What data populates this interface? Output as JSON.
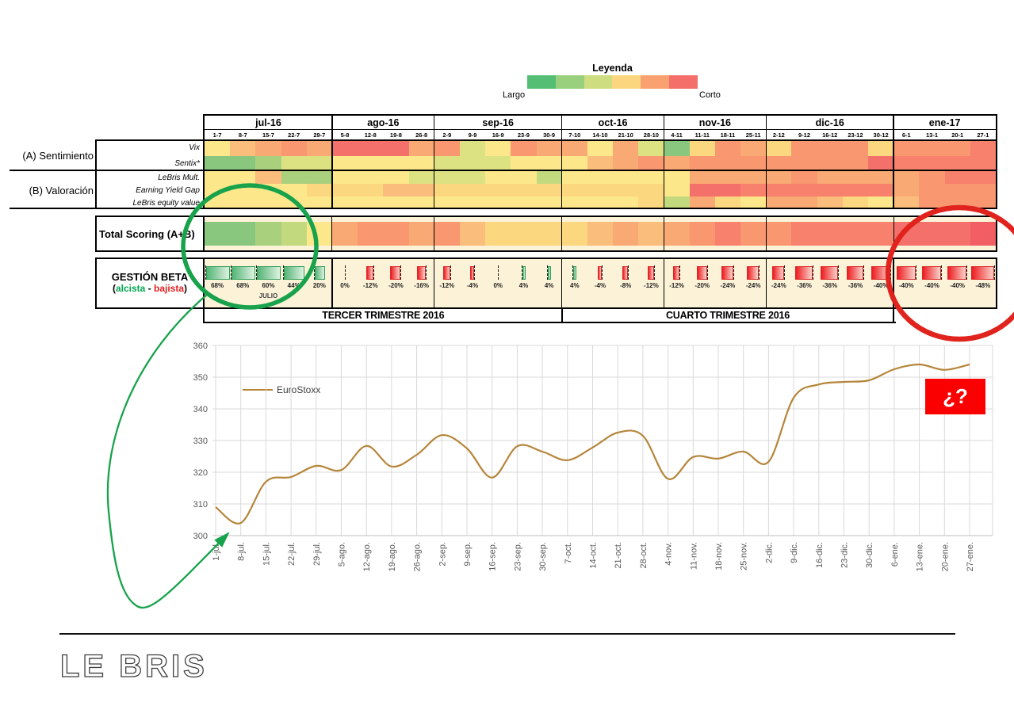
{
  "legend": {
    "title": "Leyenda",
    "left_label": "Largo",
    "right_label": "Corto",
    "colors": [
      "#54BE74",
      "#98D07E",
      "#CEDD80",
      "#FBD67E",
      "#F9A171",
      "#F46E6A"
    ]
  },
  "table": {
    "months": [
      {
        "label": "jul-16",
        "weeks": [
          "1-7",
          "8-7",
          "15-7",
          "22-7",
          "29-7"
        ]
      },
      {
        "label": "ago-16",
        "weeks": [
          "5-8",
          "12-8",
          "19-8",
          "26-8"
        ]
      },
      {
        "label": "sep-16",
        "weeks": [
          "2-9",
          "9-9",
          "16-9",
          "23-9",
          "30-9"
        ]
      },
      {
        "label": "oct-16",
        "weeks": [
          "7-10",
          "14-10",
          "21-10",
          "28-10"
        ]
      },
      {
        "label": "nov-16",
        "weeks": [
          "4-11",
          "11-11",
          "18-11",
          "25-11"
        ]
      },
      {
        "label": "dic-16",
        "weeks": [
          "2-12",
          "9-12",
          "16-12",
          "23-12",
          "30-12"
        ]
      },
      {
        "label": "ene-17",
        "weeks": [
          "6-1",
          "13-1",
          "20-1",
          "27-1"
        ]
      }
    ],
    "groups": [
      {
        "label": "(A) Sentimiento",
        "rows": [
          {
            "label": "Vix",
            "colors": [
              "#FCE88A",
              "#FBBD7B",
              "#F9A974",
              "#F89770",
              "#F9A974",
              "#F4706A",
              "#F4706A",
              "#F4706A",
              "#F9A974",
              "#F89770",
              "#DCE181",
              "#FCE88A",
              "#F89770",
              "#F9A974",
              "#F9A974",
              "#FCE88A",
              "#F9A974",
              "#DCE181",
              "#89C77E",
              "#FBD77F",
              "#F89770",
              "#F9A974",
              "#FBD77F",
              "#F89770",
              "#F89770",
              "#F89770",
              "#FBD77F",
              "#F89770",
              "#F89770",
              "#F89770",
              "#F7816D"
            ]
          },
          {
            "label": "Sentix*",
            "colors": [
              "#89C77E",
              "#89C77E",
              "#A9D07D",
              "#DCE181",
              "#DCE181",
              "#FCE88A",
              "#FCE88A",
              "#FCE88A",
              "#FCE88A",
              "#DCE181",
              "#DCE181",
              "#DCE181",
              "#FCE88A",
              "#FCE88A",
              "#FCE88A",
              "#FBBD7B",
              "#F9A974",
              "#F89770",
              "#F9A974",
              "#F89770",
              "#F89770",
              "#F89770",
              "#F89770",
              "#F89770",
              "#F89770",
              "#F89770",
              "#F4706A",
              "#F7816D",
              "#F7816D",
              "#F7816D",
              "#F7816D"
            ]
          }
        ]
      },
      {
        "label": "(B) Valoración",
        "rows": [
          {
            "label": "LeBris Mult.",
            "colors": [
              "#FCE88A",
              "#FCE88A",
              "#FBBD7B",
              "#A9D07D",
              "#A9D07D",
              "#FCE88A",
              "#FCE88A",
              "#FCE88A",
              "#DCE181",
              "#DCE181",
              "#DCE181",
              "#FCE88A",
              "#FCE88A",
              "#C3D97E",
              "#FCE88A",
              "#FCE88A",
              "#FCE88A",
              "#FCE88A",
              "#FCE88A",
              "#F9A974",
              "#F9A974",
              "#F9A974",
              "#F9A974",
              "#F89770",
              "#F9A974",
              "#F9A974",
              "#F9A974",
              "#F9A974",
              "#F89770",
              "#F7816D",
              "#F7816D"
            ]
          },
          {
            "label": "Earning Yield Gap",
            "colors": [
              "#FCE88A",
              "#FCE88A",
              "#FCE88A",
              "#FCE88A",
              "#FBD77F",
              "#FBD77F",
              "#FBD77F",
              "#FBBD7B",
              "#FBBD7B",
              "#FBD77F",
              "#FBD77F",
              "#FBD77F",
              "#FBD77F",
              "#FBD77F",
              "#FBD77F",
              "#FBD77F",
              "#FBD77F",
              "#FBD77F",
              "#FCE88A",
              "#F4706A",
              "#F4706A",
              "#F7816D",
              "#F7816D",
              "#F7816D",
              "#F7816D",
              "#F7816D",
              "#F7816D",
              "#F9A974",
              "#F89770",
              "#F89770",
              "#F89770"
            ]
          },
          {
            "label": "LeBris equity value",
            "colors": [
              "#FCE88A",
              "#FCE88A",
              "#FCE88A",
              "#FCE88A",
              "#FCE88A",
              "#FCE88A",
              "#FCE88A",
              "#FCE88A",
              "#FCE88A",
              "#FCE88A",
              "#FCE88A",
              "#FCE88A",
              "#FCE88A",
              "#FCE88A",
              "#FCE88A",
              "#FCE88A",
              "#FCE88A",
              "#FBD77F",
              "#C3D97E",
              "#F9A974",
              "#FBD77F",
              "#FCE88A",
              "#F9A974",
              "#F9A974",
              "#FBBD7B",
              "#FBD77F",
              "#FCE88A",
              "#FBBD7B",
              "#F89770",
              "#F89770",
              "#F89770"
            ]
          }
        ]
      }
    ]
  },
  "total_scoring": {
    "label": "Total Scoring (A+B)",
    "colors": [
      "#89C77E",
      "#89C77E",
      "#A9D07D",
      "#C3D97E",
      "#FCE88A",
      "#F9A974",
      "#F89770",
      "#F89770",
      "#F9A974",
      "#F89770",
      "#FBBD7B",
      "#FBD77F",
      "#FBD77F",
      "#FBD77F",
      "#FBD77F",
      "#FBBD7B",
      "#F9A974",
      "#FBBD7B",
      "#F9A974",
      "#F89770",
      "#F7816D",
      "#F89770",
      "#F89770",
      "#F7816D",
      "#F7816D",
      "#F7816D",
      "#F7816D",
      "#F4706A",
      "#F4706A",
      "#F4706A",
      "#F15E64"
    ]
  },
  "gestion_beta": {
    "label": "GESTIÓN BETA",
    "sub": {
      "open": "(",
      "alcista": "alcista",
      "sep": " - ",
      "bajista": "bajista",
      "close": ")"
    },
    "values": [
      68,
      68,
      60,
      44,
      20,
      0,
      -12,
      -20,
      -16,
      -12,
      -4,
      0,
      4,
      4,
      4,
      -4,
      -8,
      -12,
      -12,
      -20,
      -24,
      -24,
      -24,
      -36,
      -36,
      -36,
      -40,
      -40,
      -40,
      -40,
      -48
    ],
    "labels": [
      "68%",
      "68%",
      "60%",
      "44%",
      "20%",
      "0%",
      "-12%",
      "-20%",
      "-16%",
      "-12%",
      "-4%",
      "0%",
      "4%",
      "4%",
      "4%",
      "-4%",
      "-8%",
      "-12%",
      "-12%",
      "-20%",
      "-24%",
      "-24%",
      "-24%",
      "-36%",
      "-36%",
      "-36%",
      "-40%",
      "-40%",
      "-40%",
      "-40%",
      "-48%"
    ],
    "month_note": "JULIO",
    "positive_color": "#2E9E57",
    "negative_color": "#DB2525"
  },
  "quarters": {
    "q3": "TERCER TRIMESTRE 2016",
    "q4": "CUARTO TRIMESTRE 2016"
  },
  "chart_data": {
    "type": "line",
    "x_labels": [
      "1-jul.",
      "8-jul.",
      "15-jul.",
      "22-jul.",
      "29-jul.",
      "5-ago.",
      "12-ago.",
      "19-ago.",
      "26-ago.",
      "2-sep.",
      "9-sep.",
      "16-sep.",
      "23-sep.",
      "30-sep.",
      "7-oct.",
      "14-oct.",
      "21-oct.",
      "28-oct.",
      "4-nov.",
      "11-nov.",
      "18-nov.",
      "25-nov.",
      "2-dic.",
      "9-dic.",
      "16-dic.",
      "23-dic.",
      "30-dic.",
      "6-ene.",
      "13-ene.",
      "20-ene.",
      "27-ene."
    ],
    "series": [
      {
        "name": "EuroStoxx",
        "color": "#B5853A",
        "values": [
          309,
          304,
          317,
          318.5,
          322,
          320.7,
          328.3,
          321.8,
          325.5,
          331.7,
          327.5,
          318.3,
          328.2,
          326.5,
          323.8,
          327.8,
          332.5,
          331.5,
          317.9,
          324.8,
          324.3,
          326.5,
          323.3,
          343.5,
          347.7,
          348.5,
          349,
          352.5,
          354,
          352.3,
          354
        ]
      }
    ],
    "ylim": [
      300,
      360
    ],
    "ytick_step": 10,
    "grid": true,
    "legend_position": "top-left-inside"
  },
  "annotations": {
    "question_box": "¿?"
  },
  "footer": {
    "logo": "LE BRIS"
  }
}
